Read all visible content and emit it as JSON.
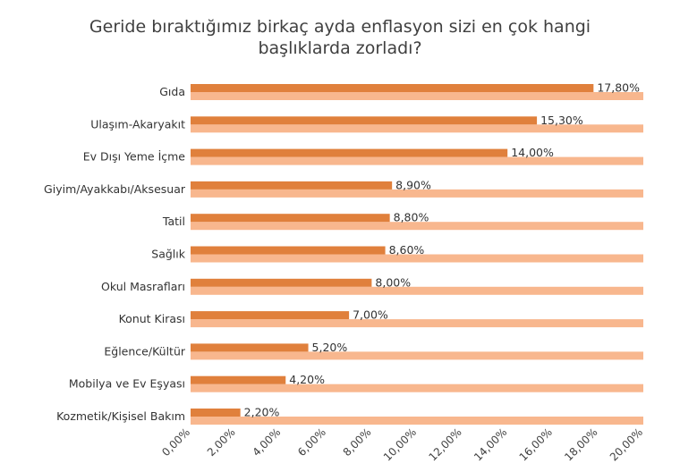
{
  "chart_data": {
    "type": "bar",
    "orientation": "horizontal",
    "title_lines": [
      "Geride bıraktığımız birkaç ayda enflasyon sizi en çok hangi",
      "başlıklarda zorladı?"
    ],
    "categories": [
      "Gıda",
      "Ulaşım-Akaryakıt",
      "Ev Dışı Yeme İçme",
      "Giyim/Ayakkabı/Aksesuar",
      "Tatil",
      "Sağlık",
      "Okul Masrafları",
      "Konut Kirası",
      "Eğlence/Kültür",
      "Mobilya ve Ev Eşyası",
      "Kozmetik/Kişisel Bakım"
    ],
    "series": [
      {
        "values": [
          17.8,
          15.3,
          14.0,
          8.9,
          8.8,
          8.6,
          8.0,
          7.0,
          5.2,
          4.2,
          2.2
        ],
        "value_labels": [
          "17,80%",
          "15,30%",
          "14,00%",
          "8,90%",
          "8,80%",
          "8,60%",
          "8,00%",
          "7,00%",
          "5,20%",
          "4,20%",
          "2,20%"
        ],
        "color": "#E0803C"
      },
      {
        "values": [
          20,
          20,
          20,
          20,
          20,
          20,
          20,
          20,
          20,
          20,
          20
        ],
        "color": "#F8B78E"
      }
    ],
    "xlim": [
      0,
      20
    ],
    "xticks": [
      0,
      2,
      4,
      6,
      8,
      10,
      12,
      14,
      16,
      18,
      20
    ],
    "xtick_labels": [
      "0,00%",
      "2,00%",
      "4,00%",
      "6,00%",
      "8,00%",
      "10,00%",
      "12,00%",
      "14,00%",
      "16,00%",
      "18,00%",
      "20,00%"
    ],
    "xtick_rotation": -45,
    "grid": false,
    "legend": "none"
  }
}
